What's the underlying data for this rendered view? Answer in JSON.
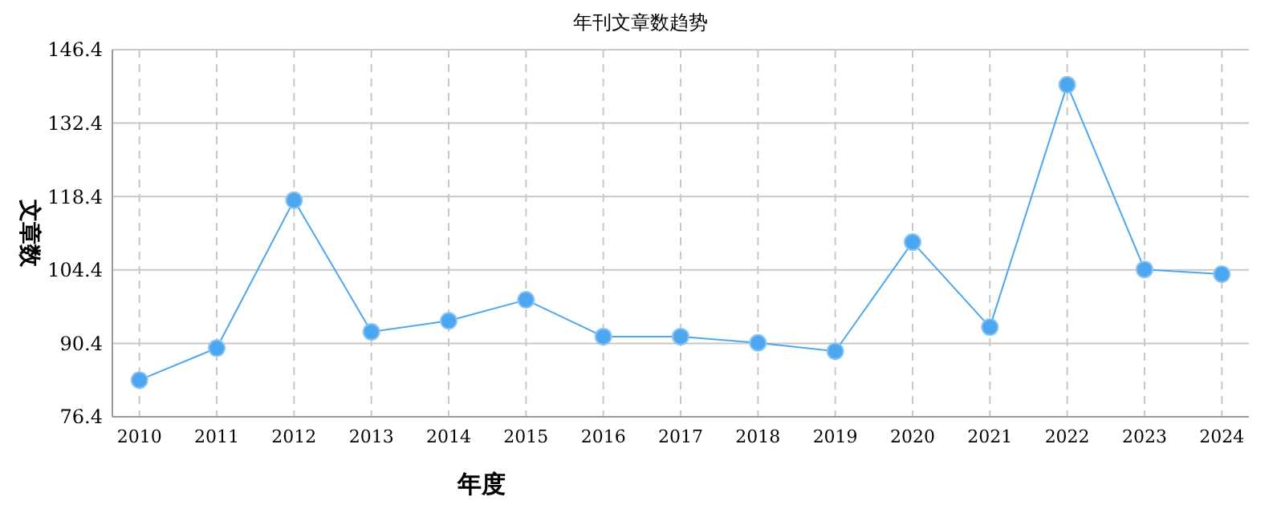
{
  "chart_data": {
    "type": "line",
    "title": "年刊文章数趋势",
    "xlabel": "年度",
    "ylabel": "文章数",
    "categories": [
      "2010",
      "2011",
      "2012",
      "2013",
      "2014",
      "2015",
      "2016",
      "2017",
      "2018",
      "2019",
      "2020",
      "2021",
      "2022",
      "2023",
      "2024"
    ],
    "series": [
      {
        "color": "#4da6f0",
        "values": [
          83.4,
          89.5,
          117.7,
          92.6,
          94.7,
          98.7,
          91.7,
          91.7,
          90.5,
          88.9,
          109.7,
          93.5,
          139.7,
          104.5,
          103.6
        ]
      }
    ],
    "ylim": [
      76.4,
      146.4
    ],
    "yticks": [
      76.4,
      90.4,
      104.4,
      118.4,
      132.4,
      146.4
    ],
    "grid": true,
    "marker": "circle",
    "line_style": "solid"
  }
}
